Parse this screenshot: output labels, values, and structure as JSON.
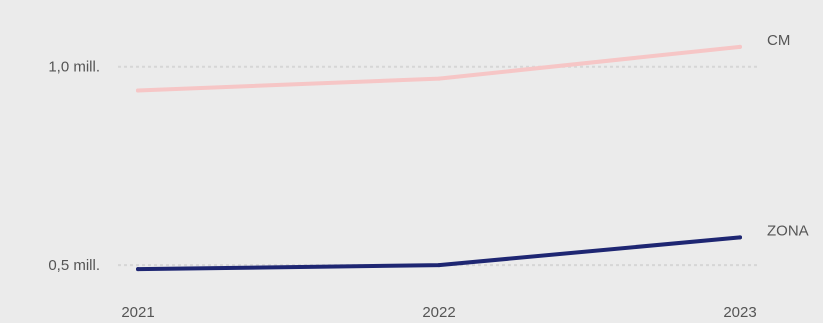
{
  "chart_data": {
    "type": "line",
    "title": "",
    "xlabel": "",
    "ylabel": "",
    "x": [
      "2021",
      "2022",
      "2023"
    ],
    "series": [
      {
        "name": "CM",
        "values": [
          0.94,
          0.97,
          1.05
        ],
        "color": "#f6c6c6"
      },
      {
        "name": "ZONA",
        "values": [
          0.49,
          0.5,
          0.57
        ],
        "color": "#1e2672"
      }
    ],
    "yticks": [
      {
        "value": 1.0,
        "label": "1,0 mill."
      },
      {
        "value": 0.5,
        "label": "0,5 mill."
      }
    ],
    "ylim": [
      0.45,
      1.1
    ],
    "grid": true,
    "legend": "inline-right"
  }
}
